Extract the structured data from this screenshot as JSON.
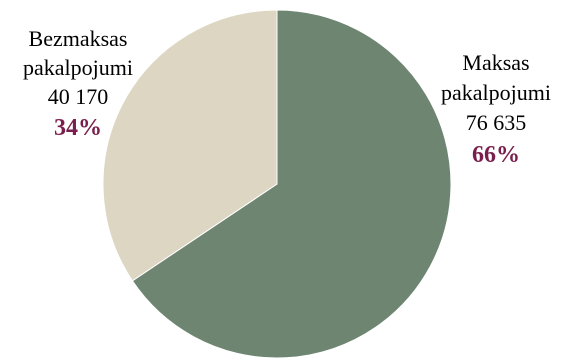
{
  "chart_data": {
    "type": "pie",
    "start_angle_deg": 0,
    "direction": "clockwise",
    "slices": [
      {
        "label_line1": "Maksas",
        "label_line2": "pakalpojumi",
        "value": 76635,
        "value_text": "76 635",
        "percent": 66,
        "percent_text": "66%",
        "color": "#6E8572"
      },
      {
        "label_line1": "Bezmaksas",
        "label_line2": "pakalpojumi",
        "value": 40170,
        "value_text": "40 170",
        "percent": 34,
        "percent_text": "34%",
        "color": "#DDD6C3"
      }
    ]
  },
  "colors": {
    "percent_text": "#7A1F4D",
    "slice_border": "#ffffff"
  }
}
